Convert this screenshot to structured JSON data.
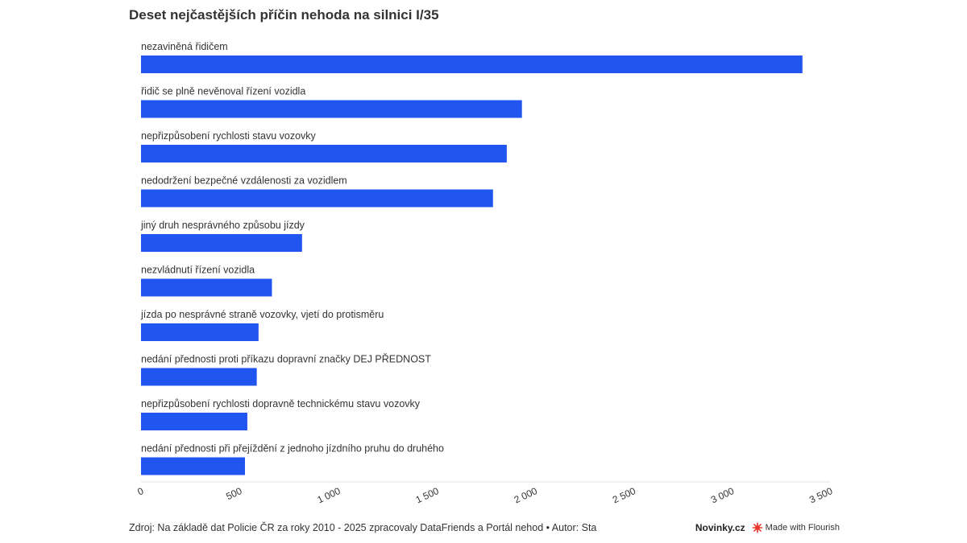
{
  "chart_data": {
    "type": "bar",
    "orientation": "horizontal",
    "title": "Deset nejčastějších příčin nehoda na silnici I/35",
    "categories": [
      "nezaviněná řidičem",
      "řidič se plně nevěnoval řízení vozidla",
      "nepřizpůsobení rychlosti stavu vozovky",
      "nedodržení bezpečné vzdálenosti za vozidlem",
      "jiný druh nesprávného způsobu jízdy",
      "nezvládnutí řízení vozidla",
      "jízda po nesprávné straně vozovky, vjetí do protisměru",
      "nedání přednosti proti příkazu dopravní značky DEJ PŘEDNOST",
      "nepřizpůsobení rychlosti dopravně technickému stavu vozovky",
      "nedání přednosti při přejíždění z jednoho jízdního pruhu do druhého"
    ],
    "values": [
      3360,
      1935,
      1858,
      1788,
      818,
      665,
      597,
      588,
      540,
      528
    ],
    "xlim": [
      0,
      3500
    ],
    "xticks": [
      0,
      500,
      1000,
      1500,
      2000,
      2500,
      3000,
      3500
    ],
    "xtick_labels": [
      "0",
      "500",
      "1 000",
      "1 500",
      "2 000",
      "2 500",
      "3 000",
      "3 500"
    ],
    "bar_color": "#2155f0",
    "grid": false
  },
  "footer": {
    "source": "Zdroj: Na základě dat Policie ČR za roky 2010 - 2025 zpracovaly DataFriends a Portál nehod • Autor: Sta",
    "brand": "Novinky.cz",
    "flourish": "Made with Flourish"
  }
}
